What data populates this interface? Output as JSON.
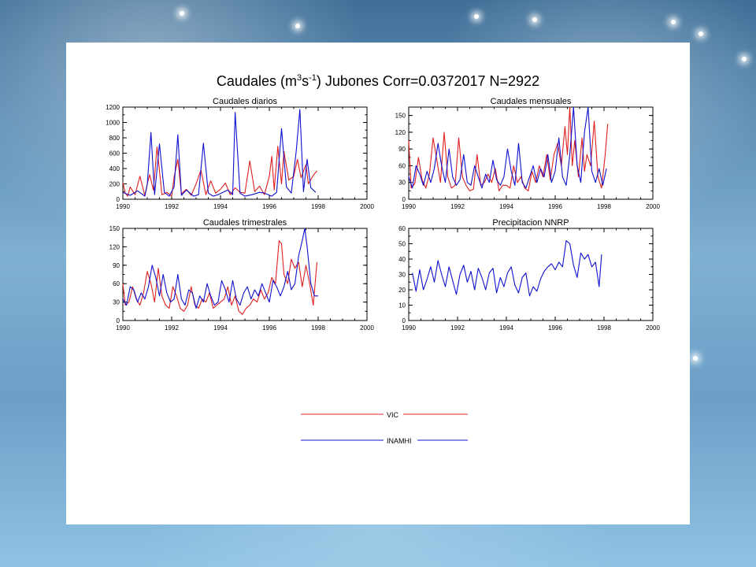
{
  "figure": {
    "title_main": "Caudales (m",
    "title_sup1": "3",
    "title_mid": "s",
    "title_sup2": "-1",
    "title_rest": ") Jubones Corr=0.0372017 N=2922"
  },
  "legend": [
    {
      "label": "VIC",
      "color": "#e02020"
    },
    {
      "label": "INAMHI",
      "color": "#1010d0"
    }
  ],
  "chart_data": [
    {
      "type": "line",
      "title": "Caudales diarios",
      "xlim": [
        1990,
        2000
      ],
      "ylim": [
        0,
        1200
      ],
      "xticks": [
        1990,
        1992,
        1994,
        1996,
        1998,
        2000
      ],
      "yticks": [
        0,
        200,
        400,
        600,
        800,
        1000,
        1200
      ],
      "series": [
        {
          "name": "VIC",
          "color": "#e02020",
          "x": [
            1990.0,
            1990.1,
            1990.2,
            1990.3,
            1990.5,
            1990.7,
            1990.9,
            1991.0,
            1991.1,
            1991.25,
            1991.4,
            1991.6,
            1991.8,
            1992.0,
            1992.1,
            1992.25,
            1992.4,
            1992.6,
            1992.8,
            1993.0,
            1993.2,
            1993.4,
            1993.6,
            1993.8,
            1994.0,
            1994.2,
            1994.4,
            1994.6,
            1994.8,
            1995.0,
            1995.2,
            1995.4,
            1995.6,
            1995.8,
            1996.0,
            1996.1,
            1996.2,
            1996.35,
            1996.5,
            1996.6,
            1996.8,
            1997.0,
            1997.15,
            1997.3,
            1997.5,
            1997.6,
            1997.8,
            1997.95
          ],
          "y": [
            220,
            80,
            40,
            160,
            60,
            300,
            50,
            200,
            320,
            120,
            680,
            60,
            90,
            40,
            290,
            520,
            70,
            130,
            50,
            200,
            380,
            60,
            240,
            80,
            130,
            210,
            60,
            150,
            90,
            80,
            500,
            100,
            170,
            60,
            300,
            560,
            120,
            690,
            200,
            620,
            250,
            300,
            520,
            280,
            450,
            200,
            310,
            370
          ]
        },
        {
          "name": "INAMHI",
          "color": "#1010d0",
          "x": [
            1990.0,
            1990.3,
            1990.6,
            1990.9,
            1991.0,
            1991.15,
            1991.3,
            1991.5,
            1991.7,
            1991.9,
            1992.1,
            1992.25,
            1992.4,
            1992.6,
            1992.9,
            1993.1,
            1993.3,
            1993.5,
            1993.7,
            1993.9,
            1994.1,
            1994.3,
            1994.5,
            1994.6,
            1994.8,
            1995.0,
            1995.3,
            1995.6,
            1995.8,
            1996.1,
            1996.3,
            1996.5,
            1996.7,
            1996.9,
            1997.1,
            1997.25,
            1997.4,
            1997.55,
            1997.7,
            1997.9
          ],
          "y": [
            90,
            50,
            110,
            40,
            190,
            870,
            60,
            720,
            90,
            40,
            160,
            840,
            50,
            120,
            40,
            60,
            730,
            80,
            40,
            60,
            90,
            120,
            60,
            1130,
            80,
            40,
            60,
            90,
            80,
            40,
            90,
            920,
            160,
            80,
            620,
            1170,
            100,
            520,
            150,
            90
          ]
        }
      ]
    },
    {
      "type": "line",
      "title": "Caudales mensuales",
      "xlim": [
        1990,
        2000
      ],
      "ylim": [
        0,
        165
      ],
      "xticks": [
        1990,
        1992,
        1994,
        1996,
        1998,
        2000
      ],
      "yticks": [
        0,
        30,
        60,
        90,
        120,
        150
      ],
      "series": [
        {
          "name": "VIC",
          "color": "#e02020",
          "x": [
            1990.0,
            1990.1,
            1990.25,
            1990.4,
            1990.55,
            1990.7,
            1990.85,
            1991.0,
            1991.15,
            1991.3,
            1991.45,
            1991.6,
            1991.75,
            1991.9,
            1992.05,
            1992.2,
            1992.35,
            1992.5,
            1992.65,
            1992.8,
            1992.95,
            1993.1,
            1993.25,
            1993.4,
            1993.55,
            1993.7,
            1993.85,
            1994.0,
            1994.15,
            1994.3,
            1994.45,
            1994.6,
            1994.75,
            1994.9,
            1995.05,
            1995.2,
            1995.35,
            1995.5,
            1995.65,
            1995.8,
            1995.95,
            1996.1,
            1996.25,
            1996.4,
            1996.5,
            1996.6,
            1996.7,
            1996.8,
            1996.95,
            1997.1,
            1997.2,
            1997.3,
            1997.45,
            1997.6,
            1997.75,
            1997.9,
            1998.05,
            1998.15
          ],
          "y": [
            105,
            20,
            28,
            75,
            35,
            20,
            45,
            110,
            70,
            30,
            120,
            40,
            20,
            25,
            110,
            40,
            25,
            15,
            18,
            80,
            25,
            30,
            45,
            30,
            55,
            15,
            25,
            25,
            20,
            60,
            30,
            40,
            20,
            15,
            50,
            30,
            60,
            40,
            80,
            35,
            80,
            100,
            60,
            130,
            80,
            170,
            60,
            105,
            40,
            110,
            50,
            80,
            60,
            140,
            40,
            20,
            80,
            135
          ]
        },
        {
          "name": "INAMHI",
          "color": "#1010d0",
          "x": [
            1990.0,
            1990.15,
            1990.3,
            1990.45,
            1990.6,
            1990.75,
            1990.9,
            1991.05,
            1991.2,
            1991.35,
            1991.5,
            1991.65,
            1991.8,
            1991.95,
            1992.1,
            1992.25,
            1992.4,
            1992.55,
            1992.7,
            1992.85,
            1993.0,
            1993.15,
            1993.3,
            1993.45,
            1993.6,
            1993.75,
            1993.9,
            1994.05,
            1994.2,
            1994.35,
            1994.5,
            1994.65,
            1994.8,
            1994.95,
            1995.1,
            1995.25,
            1995.4,
            1995.55,
            1995.7,
            1995.85,
            1996.0,
            1996.15,
            1996.3,
            1996.45,
            1996.6,
            1996.75,
            1996.9,
            1997.05,
            1997.2,
            1997.35,
            1997.5,
            1997.65,
            1997.8,
            1997.95,
            1998.1
          ],
          "y": [
            40,
            20,
            60,
            45,
            25,
            50,
            30,
            55,
            100,
            60,
            30,
            90,
            40,
            25,
            35,
            80,
            30,
            25,
            60,
            40,
            20,
            45,
            30,
            70,
            35,
            25,
            40,
            90,
            50,
            25,
            100,
            30,
            20,
            40,
            60,
            30,
            55,
            40,
            80,
            30,
            50,
            110,
            40,
            25,
            80,
            165,
            60,
            30,
            120,
            170,
            50,
            30,
            55,
            25,
            55
          ]
        }
      ]
    },
    {
      "type": "line",
      "title": "Caudales trimestrales",
      "xlim": [
        1990,
        2000
      ],
      "ylim": [
        0,
        150
      ],
      "xticks": [
        1990,
        1992,
        1994,
        1996,
        1998,
        2000
      ],
      "yticks": [
        0,
        30,
        60,
        90,
        120,
        150
      ],
      "series": [
        {
          "name": "VIC",
          "color": "#e02020",
          "x": [
            1990.0,
            1990.1,
            1990.25,
            1990.4,
            1990.55,
            1990.7,
            1990.85,
            1991.0,
            1991.15,
            1991.3,
            1991.45,
            1991.6,
            1991.75,
            1991.9,
            1992.05,
            1992.2,
            1992.35,
            1992.5,
            1992.65,
            1992.8,
            1992.95,
            1993.1,
            1993.25,
            1993.4,
            1993.55,
            1993.7,
            1993.85,
            1994.0,
            1994.15,
            1994.3,
            1994.45,
            1994.6,
            1994.75,
            1994.9,
            1995.05,
            1995.2,
            1995.35,
            1995.5,
            1995.65,
            1995.8,
            1995.95,
            1996.1,
            1996.25,
            1996.4,
            1996.5,
            1996.6,
            1996.75,
            1996.9,
            1997.05,
            1997.2,
            1997.35,
            1997.5,
            1997.65,
            1997.8,
            1997.95
          ],
          "y": [
            60,
            25,
            30,
            55,
            35,
            25,
            45,
            80,
            60,
            30,
            85,
            40,
            25,
            20,
            55,
            40,
            20,
            15,
            25,
            55,
            25,
            20,
            35,
            30,
            45,
            20,
            25,
            30,
            35,
            55,
            25,
            40,
            15,
            10,
            20,
            25,
            35,
            30,
            50,
            35,
            45,
            70,
            60,
            130,
            125,
            75,
            60,
            100,
            85,
            95,
            55,
            90,
            60,
            25,
            95
          ]
        },
        {
          "name": "INAMHI",
          "color": "#1010d0",
          "x": [
            1990.0,
            1990.15,
            1990.3,
            1990.45,
            1990.6,
            1990.75,
            1990.9,
            1991.05,
            1991.2,
            1991.35,
            1991.5,
            1991.65,
            1991.8,
            1991.95,
            1992.1,
            1992.25,
            1992.4,
            1992.55,
            1992.7,
            1992.85,
            1993.0,
            1993.15,
            1993.3,
            1993.45,
            1993.6,
            1993.75,
            1993.9,
            1994.05,
            1994.2,
            1994.35,
            1994.5,
            1994.65,
            1994.8,
            1994.95,
            1995.1,
            1995.25,
            1995.4,
            1995.55,
            1995.7,
            1995.85,
            1996.0,
            1996.15,
            1996.3,
            1996.45,
            1996.6,
            1996.75,
            1996.9,
            1997.05,
            1997.2,
            1997.35,
            1997.45,
            1997.55,
            1997.7,
            1997.85,
            1998.0
          ],
          "y": [
            35,
            25,
            55,
            50,
            30,
            45,
            35,
            55,
            90,
            70,
            40,
            75,
            45,
            30,
            35,
            75,
            35,
            25,
            50,
            45,
            20,
            40,
            30,
            60,
            40,
            25,
            30,
            65,
            50,
            30,
            65,
            35,
            25,
            45,
            55,
            35,
            50,
            40,
            60,
            45,
            30,
            65,
            55,
            40,
            55,
            80,
            50,
            60,
            105,
            130,
            150,
            120,
            60,
            40,
            40
          ]
        }
      ]
    },
    {
      "type": "line",
      "title": "Precipitacion NNRP",
      "xlim": [
        1990,
        2000
      ],
      "ylim": [
        0,
        60
      ],
      "xticks": [
        1990,
        1992,
        1994,
        1996,
        1998,
        2000
      ],
      "yticks": [
        0,
        10,
        20,
        30,
        40,
        50,
        60
      ],
      "series": [
        {
          "name": "INAMHI",
          "color": "#1010d0",
          "x": [
            1990.15,
            1990.3,
            1990.45,
            1990.6,
            1990.75,
            1990.9,
            1991.05,
            1991.2,
            1991.35,
            1991.5,
            1991.65,
            1991.8,
            1991.95,
            1992.1,
            1992.25,
            1992.4,
            1992.55,
            1992.7,
            1992.85,
            1993.0,
            1993.15,
            1993.3,
            1993.45,
            1993.6,
            1993.75,
            1993.9,
            1994.05,
            1994.2,
            1994.35,
            1994.5,
            1994.65,
            1994.8,
            1994.95,
            1995.1,
            1995.25,
            1995.4,
            1995.55,
            1995.7,
            1995.85,
            1996.0,
            1996.15,
            1996.3,
            1996.45,
            1996.6,
            1996.75,
            1996.9,
            1997.05,
            1997.2,
            1997.35,
            1997.5,
            1997.65,
            1997.8,
            1997.9
          ],
          "y": [
            31,
            19,
            33,
            20,
            27,
            35,
            25,
            39,
            30,
            22,
            35,
            26,
            17,
            30,
            36,
            25,
            32,
            20,
            34,
            28,
            20,
            31,
            34,
            18,
            28,
            22,
            31,
            35,
            23,
            18,
            28,
            31,
            16,
            22,
            19,
            27,
            32,
            35,
            37,
            33,
            38,
            35,
            52,
            50,
            36,
            28,
            44,
            40,
            43,
            35,
            38,
            22,
            43
          ]
        }
      ]
    }
  ]
}
